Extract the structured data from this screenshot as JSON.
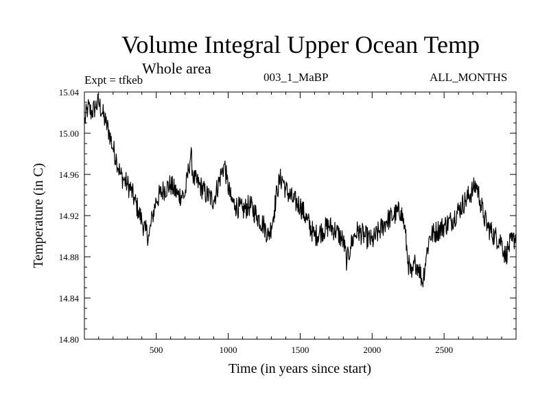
{
  "chart_data": {
    "type": "line",
    "title": "Volume Integral Upper Ocean Temp",
    "subtitle": "Whole area",
    "annotations": {
      "left": "Expt = tfkeb",
      "center": "003_1_MaBP",
      "right": "ALL_MONTHS"
    },
    "xlabel": "Time (in years since start)",
    "ylabel": "Temperature (in C)",
    "xlim": [
      1,
      3000
    ],
    "ylim": [
      14.8,
      15.04
    ],
    "xticks": [
      "500",
      "1000",
      "1500",
      "2000",
      "2500"
    ],
    "xtick_values": [
      500,
      1000,
      1500,
      2000,
      2500
    ],
    "yticks": [
      "14.80",
      "14.84",
      "14.88",
      "14.92",
      "14.96",
      "15.00",
      "15.04"
    ],
    "ytick_values": [
      14.8,
      14.84,
      14.88,
      14.92,
      14.96,
      15.0,
      15.04
    ],
    "grid": false,
    "series_color": "#000000",
    "series": [
      {
        "x": [
          1,
          25,
          50,
          75,
          100,
          125,
          150,
          175,
          200,
          225,
          250,
          275,
          300,
          325,
          350,
          375,
          400,
          425,
          450,
          475,
          500,
          550,
          600,
          650,
          700,
          725,
          740,
          760,
          800,
          850,
          900,
          950,
          975,
          990,
          1020,
          1050,
          1100,
          1150,
          1200,
          1250,
          1280,
          1300,
          1320,
          1340,
          1360,
          1380,
          1400,
          1450,
          1500,
          1550,
          1600,
          1650,
          1700,
          1750,
          1800,
          1825,
          1850,
          1875,
          1900,
          1950,
          2000,
          2050,
          2100,
          2150,
          2200,
          2225,
          2250,
          2275,
          2300,
          2325,
          2350,
          2375,
          2400,
          2450,
          2500,
          2550,
          2600,
          2650,
          2700,
          2725,
          2750,
          2775,
          2800,
          2850,
          2900,
          2925,
          2950,
          2975,
          3000
        ],
        "y": [
          15.01,
          15.025,
          15.02,
          15.025,
          15.03,
          15.02,
          15.01,
          15.0,
          14.985,
          14.975,
          14.96,
          14.955,
          14.95,
          14.945,
          14.935,
          14.925,
          14.915,
          14.905,
          14.9,
          14.92,
          14.935,
          14.945,
          14.95,
          14.94,
          14.94,
          14.965,
          14.98,
          14.955,
          14.95,
          14.94,
          14.935,
          14.96,
          14.97,
          14.955,
          14.935,
          14.93,
          14.925,
          14.93,
          14.92,
          14.91,
          14.9,
          14.91,
          14.925,
          14.945,
          14.955,
          14.955,
          14.945,
          14.935,
          14.93,
          14.915,
          14.9,
          14.905,
          14.91,
          14.905,
          14.895,
          14.875,
          14.89,
          14.9,
          14.905,
          14.9,
          14.895,
          14.905,
          14.915,
          14.92,
          14.925,
          14.91,
          14.875,
          14.86,
          14.875,
          14.87,
          14.855,
          14.88,
          14.9,
          14.905,
          14.91,
          14.915,
          14.925,
          14.935,
          14.945,
          14.95,
          14.935,
          14.92,
          14.91,
          14.9,
          14.895,
          14.88,
          14.89,
          14.895,
          14.9
        ]
      }
    ]
  }
}
